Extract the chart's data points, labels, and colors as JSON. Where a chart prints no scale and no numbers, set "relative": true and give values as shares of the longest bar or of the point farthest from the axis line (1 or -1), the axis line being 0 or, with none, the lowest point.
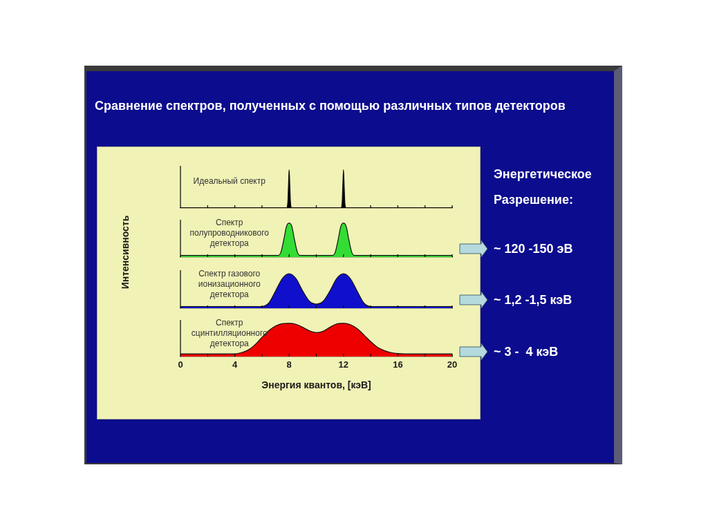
{
  "chart_data": [
    {
      "type": "other",
      "title": "Сравнение спектров, полученных с помощью различных типов детекторов"
    },
    {
      "type": "area",
      "title": "Идеальный спектр",
      "ylabel": "Интенсивность",
      "relative": true,
      "xlim": [
        0,
        20
      ],
      "xticks": [
        0,
        {
          "value": 2,
          "label": null
        },
        4,
        {
          "value": 6,
          "label": null
        },
        8,
        {
          "value": 10,
          "label": null
        },
        12,
        {
          "value": 14,
          "label": null
        },
        16,
        {
          "value": 18,
          "label": null
        },
        20
      ],
      "tick_labels": false,
      "color": "#000000",
      "x": [
        0,
        7.8,
        7.9,
        7.95,
        8,
        8.05,
        8.1,
        8.2,
        11.8,
        11.9,
        11.95,
        12,
        12.05,
        12.1,
        12.2,
        20
      ],
      "values": [
        0,
        0,
        0.15,
        0.6,
        1,
        0.6,
        0.15,
        0,
        0,
        0.15,
        0.6,
        1,
        0.6,
        0.15,
        0,
        0
      ]
    },
    {
      "type": "area",
      "title": "Спектр полупроводникового детектора",
      "relative": true,
      "xlim": [
        0,
        20
      ],
      "xticks": [
        0,
        {
          "value": 2,
          "label": null
        },
        4,
        {
          "value": 6,
          "label": null
        },
        8,
        {
          "value": 10,
          "label": null
        },
        12,
        {
          "value": 14,
          "label": null
        },
        16,
        {
          "value": 18,
          "label": null
        },
        20
      ],
      "tick_labels": false,
      "color": "#33dd33",
      "x": [
        0,
        7.2,
        7.4,
        7.6,
        7.8,
        8,
        8.2,
        8.4,
        8.6,
        8.8,
        11.2,
        11.4,
        11.6,
        11.8,
        12,
        12.2,
        12.4,
        12.6,
        12.8,
        20
      ],
      "values": [
        0.05,
        0.05,
        0.15,
        0.5,
        0.9,
        1,
        0.9,
        0.5,
        0.15,
        0.05,
        0.05,
        0.15,
        0.5,
        0.9,
        1,
        0.9,
        0.5,
        0.15,
        0.05,
        0.05
      ]
    },
    {
      "type": "area",
      "title": "Спектр газового ионизационного детектора",
      "relative": true,
      "xlim": [
        0,
        20
      ],
      "xticks": [
        0,
        {
          "value": 2,
          "label": null
        },
        4,
        {
          "value": 6,
          "label": null
        },
        8,
        {
          "value": 10,
          "label": null
        },
        12,
        {
          "value": 14,
          "label": null
        },
        16,
        {
          "value": 18,
          "label": null
        },
        20
      ],
      "tick_labels": false,
      "color": "#1010cc",
      "x": [
        0,
        6,
        6.5,
        7,
        7.5,
        8,
        8.5,
        9,
        9.5,
        10,
        10.5,
        11,
        11.5,
        12,
        12.5,
        13,
        13.5,
        14,
        20
      ],
      "values": [
        0.05,
        0.05,
        0.15,
        0.5,
        0.86,
        1,
        0.86,
        0.5,
        0.2,
        0.12,
        0.2,
        0.5,
        0.86,
        1,
        0.86,
        0.5,
        0.15,
        0.05,
        0.05
      ]
    },
    {
      "type": "area",
      "title": "Спектр сцинтилляционного детектора",
      "xlabel": "Энергия квантов, [кэВ]",
      "relative": true,
      "xlim": [
        0,
        20
      ],
      "xticks": [
        0,
        {
          "value": 2,
          "label": null
        },
        4,
        {
          "value": 6,
          "label": null
        },
        8,
        {
          "value": 10,
          "label": null
        },
        12,
        {
          "value": 14,
          "label": null
        },
        16,
        {
          "value": 18,
          "label": null
        },
        20
      ],
      "tick_labels": "x",
      "color": "#ee0000",
      "x": [
        0,
        3.9,
        4.5,
        5,
        5.5,
        6,
        6.5,
        7,
        7.5,
        8,
        8.5,
        9,
        9.5,
        10,
        10.5,
        11,
        11.5,
        12,
        12.5,
        13,
        13.5,
        14,
        14.5,
        15,
        15.5,
        16,
        16.5,
        20
      ],
      "values": [
        0.08,
        0.08,
        0.12,
        0.2,
        0.36,
        0.58,
        0.78,
        0.92,
        0.99,
        1,
        0.97,
        0.88,
        0.77,
        0.72,
        0.76,
        0.88,
        0.98,
        1,
        0.96,
        0.84,
        0.65,
        0.45,
        0.28,
        0.18,
        0.12,
        0.09,
        0.08,
        0.08
      ]
    },
    {
      "type": "other",
      "title": "Энергетическое Разрешение:",
      "annotations": [
        "~ 120 -150 эВ",
        "~ 1,2 -1,5 кэВ",
        "~ 3 -  4 кэВ"
      ]
    }
  ]
}
